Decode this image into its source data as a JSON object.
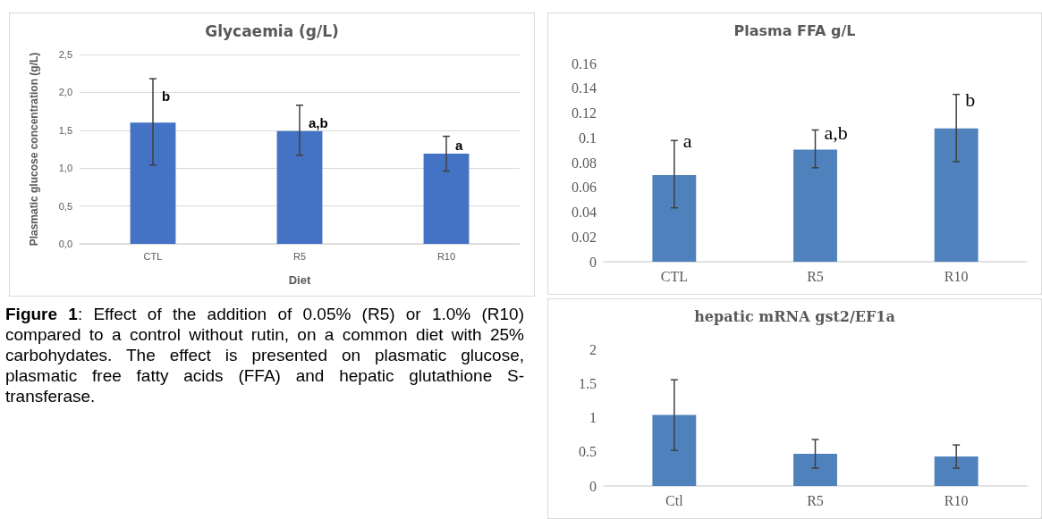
{
  "chart_data": [
    {
      "type": "bar",
      "title": "Glycaemia (g/L)",
      "xlabel": "Diet",
      "ylabel": "Plasmatic glucose concentration (g/L)",
      "categories": [
        "CTL",
        "R5",
        "R10"
      ],
      "values": [
        1.6,
        1.49,
        1.19
      ],
      "color": "#4472c4",
      "errors": [
        [
          1.04,
          2.18
        ],
        [
          1.17,
          1.83
        ],
        [
          0.96,
          1.42
        ]
      ],
      "ylim": [
        0,
        2.5
      ],
      "yticks": [
        {
          "value": 0,
          "label": "0,0"
        },
        {
          "value": 0.5,
          "label": "0,5"
        },
        {
          "value": 1,
          "label": "1,0"
        },
        {
          "value": 1.5,
          "label": "1,5"
        },
        {
          "value": 2,
          "label": "2,0"
        },
        {
          "value": 2.5,
          "label": "2,5"
        }
      ],
      "grid": "y",
      "annotations": [
        {
          "text": "b",
          "x": "CTL",
          "y": 1.95
        },
        {
          "text": "a,b",
          "x": "R5",
          "y": 1.6
        },
        {
          "text": "a",
          "x": "R10",
          "y": 1.3
        }
      ]
    },
    {
      "type": "other",
      "annotations": [
        "Figure 1:  Effect of the addition of 0.05% (R5) or 1.0% (R10) compared to a control without rutin, on a common diet with 25% carbohydates. The effect is presented on plasmatic glucose, plasmatic free fatty acids (FFA) and hepatic glutathione S-transferase."
      ]
    },
    {
      "type": "bar",
      "title": "Plasma FFA g/L",
      "categories": [
        "CTL",
        "R5",
        "R10"
      ],
      "values": [
        0.07,
        0.0905,
        0.1075
      ],
      "color": "#4f81bd",
      "errors": [
        [
          0.0435,
          0.0978
        ],
        [
          0.0758,
          0.1063
        ],
        [
          0.0808,
          0.135
        ]
      ],
      "ylim": [
        0,
        0.16
      ],
      "yticks": [
        0,
        0.02,
        0.04,
        0.06,
        0.08,
        0.1,
        0.12,
        0.14,
        0.16
      ],
      "annotations": [
        {
          "text": "a",
          "x": "CTL",
          "y": 0.098
        },
        {
          "text": "a,b",
          "x": "R5",
          "y": 0.104
        },
        {
          "text": "b",
          "x": "R10",
          "y": 0.131
        }
      ]
    },
    {
      "type": "bar",
      "title": "hepatic mRNA gst2/EF1a",
      "categories": [
        "Ctl",
        "R5",
        "R10"
      ],
      "values": [
        1.04,
        0.47,
        0.43
      ],
      "color": "#4f81bd",
      "errors": [
        [
          0.52,
          1.554
        ],
        [
          0.26,
          0.68
        ],
        [
          0.26,
          0.6
        ]
      ],
      "ylim": [
        0,
        2
      ],
      "yticks": [
        0,
        0.5,
        1,
        1.5,
        2
      ]
    }
  ]
}
